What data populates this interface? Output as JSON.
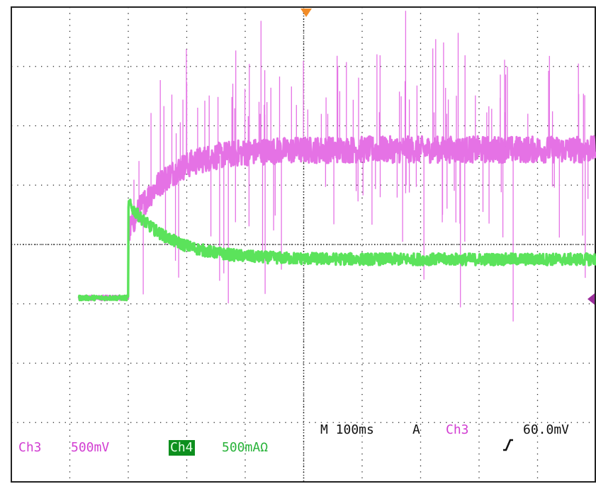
{
  "colors": {
    "ch3": "#e572e5",
    "ch4": "#5be35b",
    "ch3_text": "#d23fd2",
    "ch4_text": "#29b33a",
    "grid": "#222222",
    "background": "#ffffff"
  },
  "screen": {
    "divisions_x": 10,
    "divisions_y": 8
  },
  "readout": {
    "ch3_label": "Ch3",
    "ch3_scale": "500mV",
    "ch4_label": "Ch4",
    "ch4_scale": "500mA",
    "ch4_unit_symbol": "Ω",
    "timebase": "M 100ms",
    "trigger_mode": "A",
    "trigger_source": "Ch3",
    "trigger_slope_icon": "rising-edge-icon",
    "trigger_level": "60.0mV"
  },
  "chart_data": {
    "type": "line",
    "x_unit": "divisions",
    "y_unit": "divisions",
    "xlim": [
      0,
      10
    ],
    "ylim": [
      0,
      8
    ],
    "series": [
      {
        "name": "Ch3",
        "color": "#e572e5",
        "baseline_before_step": 3.1,
        "step_time": 2.0,
        "settled_level": 5.6,
        "rise_time_constant": 0.6,
        "start_after_step": 4.2,
        "noise_band": 0.45,
        "spike_height": 4.0
      },
      {
        "name": "Ch4",
        "color": "#5be35b",
        "baseline_before_step": 3.1,
        "step_time": 2.0,
        "peak_after_step": 4.7,
        "settled_level": 3.75,
        "decay_time_constant": 0.7,
        "noise_band": 0.2
      }
    ]
  }
}
